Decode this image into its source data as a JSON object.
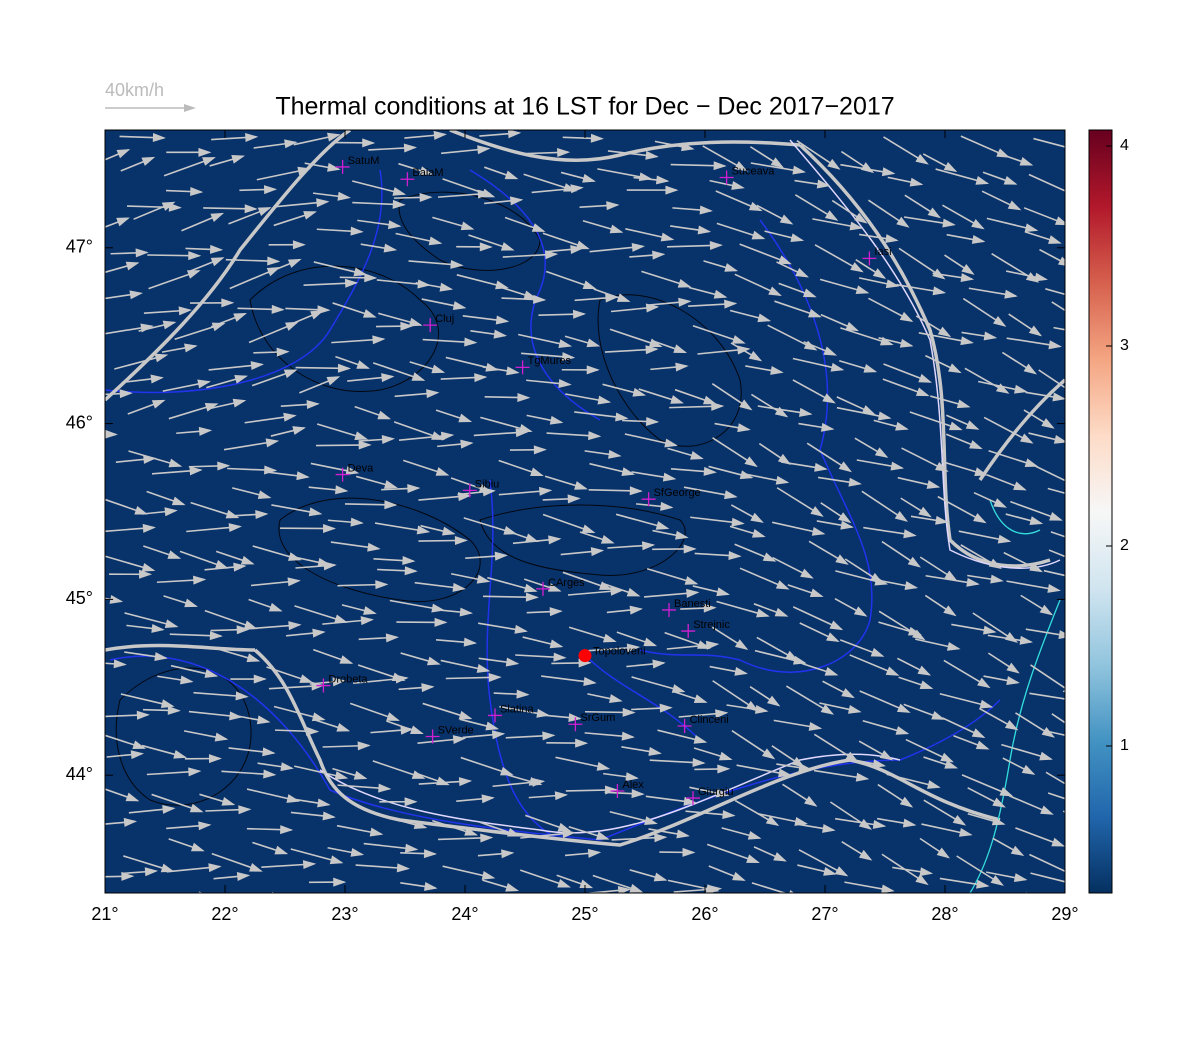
{
  "title": "Thermal conditions at 16 LST for Dec − Dec  2017−2017",
  "scale_label": "40km/h",
  "axes": {
    "xlim": [
      21,
      29
    ],
    "ylim": [
      43.33,
      47.67
    ],
    "xticks": [
      {
        "value": 21,
        "label": "21°"
      },
      {
        "value": 22,
        "label": "22°"
      },
      {
        "value": 23,
        "label": "23°"
      },
      {
        "value": 24,
        "label": "24°"
      },
      {
        "value": 25,
        "label": "25°"
      },
      {
        "value": 26,
        "label": "26°"
      },
      {
        "value": 27,
        "label": "27°"
      },
      {
        "value": 28,
        "label": "28°"
      },
      {
        "value": 29,
        "label": "29°"
      }
    ],
    "yticks": [
      {
        "value": 44,
        "label": "44°"
      },
      {
        "value": 45,
        "label": "45°"
      },
      {
        "value": 46,
        "label": "46°"
      },
      {
        "value": 47,
        "label": "47°"
      }
    ]
  },
  "colorbar": {
    "lim": [
      0.265,
      4.08
    ],
    "ticks": [
      1,
      2,
      3,
      4
    ]
  },
  "cities": [
    {
      "name": "SatuM",
      "lon": 22.98,
      "lat": 47.46
    },
    {
      "name": "BaiaM",
      "lon": 23.52,
      "lat": 47.39
    },
    {
      "name": "Suceava",
      "lon": 26.18,
      "lat": 47.4
    },
    {
      "name": "Iasi",
      "lon": 27.37,
      "lat": 46.94
    },
    {
      "name": "Cluj",
      "lon": 23.71,
      "lat": 46.56
    },
    {
      "name": "TgMures",
      "lon": 24.48,
      "lat": 46.32
    },
    {
      "name": "Deva",
      "lon": 22.98,
      "lat": 45.71
    },
    {
      "name": "Sibiu",
      "lon": 24.04,
      "lat": 45.62
    },
    {
      "name": "SfGeorge",
      "lon": 25.53,
      "lat": 45.57
    },
    {
      "name": "CArges",
      "lon": 24.65,
      "lat": 45.06
    },
    {
      "name": "Banesti",
      "lon": 25.7,
      "lat": 44.94
    },
    {
      "name": "Strejnic",
      "lon": 25.86,
      "lat": 44.82
    },
    {
      "name": "Drobeta",
      "lon": 22.82,
      "lat": 44.51
    },
    {
      "name": "Slatina",
      "lon": 24.25,
      "lat": 44.34
    },
    {
      "name": "SrGum",
      "lon": 24.92,
      "lat": 44.29
    },
    {
      "name": "Clinceni",
      "lon": 25.83,
      "lat": 44.28
    },
    {
      "name": "SVerde",
      "lon": 23.73,
      "lat": 44.22
    },
    {
      "name": "Alex",
      "lon": 25.27,
      "lat": 43.91
    },
    {
      "name": "Giurgiu",
      "lon": 25.9,
      "lat": 43.87
    }
  ],
  "site": {
    "name": "Topoloveni",
    "lon": 25.0,
    "lat": 44.68
  }
}
